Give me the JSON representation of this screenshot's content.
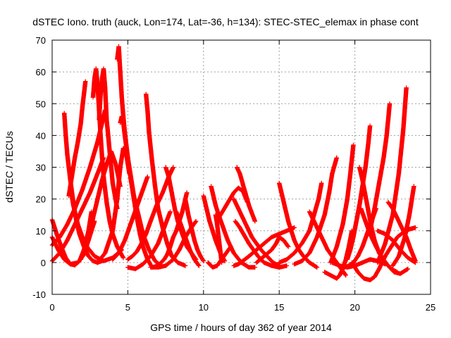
{
  "chart_data": {
    "type": "scatter",
    "title": "dSTEC Iono. truth (auck, Lon=174, Lat=-36, h=134): STEC-STEC_elemax in phase cont",
    "xlabel": "GPS time / hours of day 362 of year 2014",
    "ylabel": "dSTEC  / TECUs",
    "xlim": [
      0,
      25
    ],
    "ylim": [
      -10,
      70
    ],
    "xticks": [
      0,
      5,
      10,
      15,
      20,
      25
    ],
    "yticks": [
      -10,
      0,
      10,
      20,
      30,
      40,
      50,
      60,
      70
    ],
    "grid": true,
    "legend": "none",
    "marker": "+",
    "color": "#ff0000",
    "series": [
      {
        "x": [
          0.0,
          0.3,
          0.6,
          0.9,
          1.2,
          1.5,
          1.8,
          2.1,
          2.4,
          2.6
        ],
        "y": [
          13.5,
          9,
          5,
          1.5,
          -0.5,
          -0.8,
          0.5,
          4,
          10,
          16
        ]
      },
      {
        "x": [
          0.0,
          0.4,
          0.8,
          1.2,
          1.7,
          2.1,
          2.4,
          2.8
        ],
        "y": [
          8,
          4,
          1,
          -0.5,
          0,
          2.5,
          7,
          13
        ]
      },
      {
        "x": [
          0.0,
          0.5,
          1.0,
          1.5,
          2.0,
          2.5,
          3.0,
          3.4
        ],
        "y": [
          0.5,
          3,
          7,
          12,
          17,
          22,
          28,
          33
        ]
      },
      {
        "x": [
          0.0,
          0.5,
          1.0,
          1.5,
          2.0,
          2.5,
          3.0,
          3.5
        ],
        "y": [
          5.5,
          8,
          12,
          17,
          23,
          30,
          38,
          48
        ]
      },
      {
        "x": [
          0.8,
          0.9,
          1.0,
          1.2,
          1.4,
          1.6,
          1.8,
          2.1,
          2.4,
          2.7,
          3.0,
          3.3
        ],
        "y": [
          47,
          40,
          34,
          26,
          19,
          13,
          9,
          5,
          2,
          0.5,
          0,
          0.5
        ]
      },
      {
        "x": [
          1.2,
          1.4,
          1.7,
          2.0,
          2.3,
          2.8,
          3.4,
          4.0,
          4.6
        ],
        "y": [
          24,
          18,
          12,
          8,
          5,
          2,
          0.5,
          1.5,
          4
        ]
      },
      {
        "x": [
          1.1,
          1.3,
          1.5,
          1.7,
          1.9,
          2.0,
          2.1,
          2.2
        ],
        "y": [
          21,
          27,
          33,
          38,
          44,
          49,
          53,
          57
        ]
      },
      {
        "x": [
          1.9,
          2.1,
          2.4,
          2.7,
          3.0,
          3.3,
          3.6,
          3.9,
          4.2,
          4.5
        ],
        "y": [
          1,
          4,
          9,
          14,
          20,
          26,
          31,
          35,
          31,
          24
        ]
      },
      {
        "x": [
          2.7,
          2.8,
          2.9,
          3.0,
          3.1,
          3.2,
          3.3,
          3.4,
          3.6,
          3.8,
          4.0,
          4.3,
          4.7
        ],
        "y": [
          52,
          58,
          61,
          56,
          48,
          40,
          33,
          27,
          19,
          13,
          9,
          5,
          1.5
        ]
      },
      {
        "x": [
          3.1,
          3.2,
          3.3,
          3.4,
          3.5,
          3.6,
          3.8,
          4.0,
          4.3
        ],
        "y": [
          45,
          53,
          58,
          61,
          55,
          45,
          35,
          25,
          17
        ]
      },
      {
        "x": [
          3.0,
          3.5,
          4.0,
          4.3,
          4.5,
          4.7,
          4.9,
          5.1
        ],
        "y": [
          0,
          3,
          10,
          20,
          30,
          36,
          34,
          28
        ]
      },
      {
        "x": [
          4.3,
          4.4,
          4.5,
          4.6,
          4.7,
          4.8,
          4.9,
          5.0,
          5.2,
          5.4,
          5.6,
          5.8,
          6.0,
          6.3,
          6.6,
          7.0
        ],
        "y": [
          64,
          68,
          60,
          52,
          46,
          41,
          37,
          33,
          26,
          20,
          14,
          9,
          5,
          1,
          -1.5,
          -1
        ]
      },
      {
        "x": [
          4.5,
          4.6,
          4.7,
          4.8,
          5.0,
          5.2,
          5.4,
          5.7,
          6.0,
          6.4,
          6.8,
          7.2
        ],
        "y": [
          44,
          46,
          44,
          40,
          33,
          27,
          21,
          15,
          9,
          4,
          0.5,
          -1
        ]
      },
      {
        "x": [
          5.0,
          5.3,
          5.6,
          5.9,
          6.2,
          6.5,
          6.9,
          7.3,
          7.7,
          8.0
        ],
        "y": [
          1,
          2,
          3.5,
          6,
          9,
          13,
          18,
          22,
          27,
          30
        ]
      },
      {
        "x": [
          4.0,
          4.4,
          4.8,
          5.1,
          5.4,
          5.7,
          6.0,
          6.3
        ],
        "y": [
          1,
          3,
          7,
          11,
          15,
          19,
          23,
          27
        ]
      },
      {
        "x": [
          6.2,
          6.3,
          6.4,
          6.6,
          6.8,
          7.0,
          7.3,
          7.6,
          7.9,
          8.3,
          8.8
        ],
        "y": [
          53,
          48,
          41,
          32,
          24,
          17,
          11,
          6,
          2,
          0,
          -1
        ]
      },
      {
        "x": [
          5.0,
          5.5,
          6.0,
          6.5,
          7.0,
          7.4,
          7.8
        ],
        "y": [
          -1.5,
          -2,
          -0.5,
          2,
          6,
          11,
          16
        ]
      },
      {
        "x": [
          7.5,
          7.7,
          7.9,
          8.1,
          8.3,
          8.6,
          8.9,
          9.2,
          9.5
        ],
        "y": [
          30,
          27,
          22,
          17,
          13,
          9,
          5,
          3,
          1
        ]
      },
      {
        "x": [
          7.0,
          7.2,
          7.4,
          7.6,
          7.8,
          8.0,
          8.2,
          8.4,
          8.6,
          8.8,
          8.9
        ],
        "y": [
          -1,
          0,
          1,
          2.5,
          5,
          8,
          10,
          13,
          16,
          20,
          22
        ]
      },
      {
        "x": [
          6.5,
          7.0,
          7.5,
          8.0,
          8.4,
          8.8,
          9.2,
          9.5
        ],
        "y": [
          -1.5,
          -1.5,
          -1,
          1,
          4,
          8,
          11,
          13
        ]
      },
      {
        "x": [
          8.2,
          8.5,
          8.8,
          9.1,
          9.4,
          9.7
        ],
        "y": [
          16,
          12,
          8,
          4,
          1,
          -1
        ]
      },
      {
        "x": [
          8.8,
          9.0,
          9.2,
          9.4,
          9.6,
          9.8,
          10.0
        ],
        "y": [
          20,
          15,
          11,
          7,
          4,
          2,
          0.5
        ]
      },
      {
        "x": [
          10.0,
          10.2,
          10.4,
          10.6,
          10.8,
          11.0,
          11.2,
          11.4
        ],
        "y": [
          21,
          17,
          13,
          10,
          7,
          4.5,
          2,
          0.5
        ]
      },
      {
        "x": [
          10.3,
          10.6,
          10.9,
          11.2,
          11.5,
          11.8
        ],
        "y": [
          0,
          -1.5,
          -1,
          1,
          3,
          5
        ]
      },
      {
        "x": [
          11.0,
          11.5,
          12.0,
          12.3,
          12.6,
          12.9
        ],
        "y": [
          14,
          18,
          22,
          23.5,
          22.5,
          19
        ]
      },
      {
        "x": [
          11.2,
          11.1,
          11.0,
          10.9,
          10.8
        ],
        "y": [
          0,
          4,
          8,
          12,
          15
        ]
      },
      {
        "x": [
          10.5,
          10.6,
          10.8,
          11.0,
          11.3,
          11.6,
          12.0,
          12.5,
          13.0,
          13.4
        ],
        "y": [
          24,
          22,
          18,
          15,
          11,
          7,
          3,
          0,
          -1.5,
          -1.5
        ]
      },
      {
        "x": [
          12.0,
          12.3,
          12.6,
          12.9,
          13.2,
          13.5,
          13.8,
          14.2,
          14.6,
          15.0
        ],
        "y": [
          20,
          17,
          14,
          11,
          8,
          6,
          4,
          2,
          0,
          -1
        ]
      },
      {
        "x": [
          12.1,
          12.4,
          12.7,
          13.0,
          13.3,
          13.6,
          14.0,
          14.5,
          15.0,
          15.5
        ],
        "y": [
          13,
          11,
          8.5,
          6,
          4,
          2,
          0,
          -1,
          -1.5,
          -1
        ]
      },
      {
        "x": [
          12.2,
          12.4,
          12.7,
          13.0,
          13.4
        ],
        "y": [
          30,
          28,
          23,
          18,
          13
        ]
      },
      {
        "x": [
          12.0,
          12.3,
          12.6,
          13.0,
          13.5,
          14.0,
          14.5,
          15.0,
          15.5,
          16.0
        ],
        "y": [
          -1,
          -0.5,
          0.5,
          2,
          4,
          6,
          8,
          9,
          10,
          11
        ]
      },
      {
        "x": [
          13.5,
          14.0,
          14.5,
          14.8,
          15.0,
          15.3,
          15.6
        ],
        "y": [
          0,
          2,
          4,
          6,
          8,
          7,
          5
        ]
      },
      {
        "x": [
          15.0,
          15.2,
          15.4,
          15.6,
          15.8,
          16.0,
          16.3,
          16.6,
          17.0,
          17.5
        ],
        "y": [
          25,
          21,
          17,
          13,
          10,
          7,
          4,
          2,
          0,
          -1.5
        ]
      },
      {
        "x": [
          15.0,
          15.5,
          16.0,
          16.5,
          17.0,
          17.3,
          17.6,
          17.8
        ],
        "y": [
          0,
          1,
          3,
          6,
          10,
          15,
          20,
          25
        ]
      },
      {
        "x": [
          16.0,
          16.5,
          17.0,
          17.5,
          18.0,
          18.3,
          18.5,
          18.8
        ],
        "y": [
          -0.5,
          0.5,
          3,
          8,
          15,
          22,
          28,
          33
        ]
      },
      {
        "x": [
          17.0,
          17.3,
          17.6,
          17.9,
          18.2,
          18.5,
          18.8,
          19.1,
          19.4
        ],
        "y": [
          16,
          13,
          10,
          7,
          4,
          2,
          0,
          -2,
          -4
        ]
      },
      {
        "x": [
          18.0,
          18.4,
          18.8,
          19.0,
          19.2,
          19.4,
          19.6,
          19.8
        ],
        "y": [
          -3,
          -4,
          -5,
          -4,
          -2,
          1,
          5,
          10
        ]
      },
      {
        "x": [
          18.4,
          18.8,
          19.2,
          19.5,
          19.7,
          19.9
        ],
        "y": [
          0,
          5,
          12,
          20,
          28,
          37
        ]
      },
      {
        "x": [
          19.0,
          19.3,
          19.6,
          19.9,
          20.2,
          20.5,
          20.8,
          21.1,
          21.4
        ],
        "y": [
          -1,
          -1.5,
          -1,
          0,
          2,
          5,
          9,
          13,
          17
        ]
      },
      {
        "x": [
          19.5,
          19.7,
          19.9,
          20.1,
          20.3,
          20.5,
          20.7,
          20.9,
          21.0
        ],
        "y": [
          1,
          4,
          8,
          13,
          18,
          24,
          30,
          38,
          43
        ]
      },
      {
        "x": [
          20.3,
          20.5,
          20.7,
          20.9,
          21.1,
          21.3,
          21.6,
          22.0,
          22.4,
          22.8
        ],
        "y": [
          30,
          26,
          21,
          16,
          11,
          7,
          3,
          0,
          -2,
          -3
        ]
      },
      {
        "x": [
          20.4,
          20.7,
          21.0,
          21.4,
          21.8,
          22.2,
          22.6,
          23.0,
          23.5
        ],
        "y": [
          17,
          13,
          9,
          5,
          1.5,
          -1,
          -3,
          -3.5,
          -2
        ]
      },
      {
        "x": [
          19.8,
          20.2,
          20.6,
          21.0,
          21.3,
          21.6,
          22.0,
          22.4,
          22.8,
          23.2,
          23.6,
          24.0
        ],
        "y": [
          0,
          -3,
          -5,
          -5.5,
          -4.5,
          -2,
          2,
          5,
          8,
          9.5,
          10.5,
          11
        ]
      },
      {
        "x": [
          21.0,
          21.3,
          21.6,
          21.9,
          22.1,
          22.3
        ],
        "y": [
          10,
          17,
          25,
          33,
          40,
          50
        ]
      },
      {
        "x": [
          21.5,
          22.0,
          22.5,
          23.0,
          23.5,
          24.0
        ],
        "y": [
          10,
          9,
          7,
          4,
          1.5,
          0
        ]
      },
      {
        "x": [
          21.5,
          22.0,
          22.5,
          22.9,
          23.2,
          23.4
        ],
        "y": [
          0,
          6,
          15,
          28,
          42,
          55
        ]
      },
      {
        "x": [
          22.2,
          22.5,
          22.8,
          23.1,
          23.4,
          23.7,
          24.0
        ],
        "y": [
          19,
          17,
          14,
          11,
          8,
          4,
          0.5
        ]
      },
      {
        "x": [
          22.5,
          22.9,
          23.3,
          23.6,
          23.9
        ],
        "y": [
          -1,
          2,
          8,
          15,
          24
        ]
      },
      {
        "x": [
          18.5,
          19.0,
          19.5,
          20.0,
          20.5,
          21.0,
          21.5,
          22.0
        ],
        "y": [
          0,
          -1,
          -1.5,
          -1,
          0,
          1,
          0.5,
          -0.5
        ]
      }
    ]
  }
}
